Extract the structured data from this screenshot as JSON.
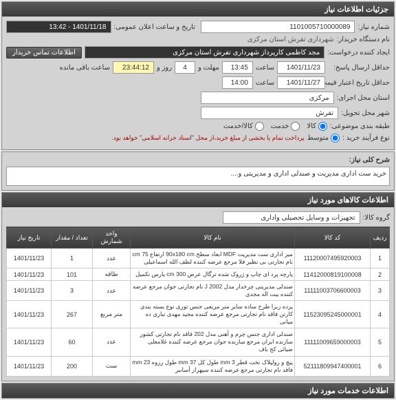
{
  "mainHeader": "جزئیات اطلاعات نیاز",
  "fields": {
    "needNoLabel": "شماره نیاز:",
    "needNo": "1101005710000089",
    "pubDateLabel": "تاریخ و ساعت اعلان عمومی:",
    "pubDate": "1401/11/18 - 13:42",
    "buyerLabel": "نام دستگاه خریدار:",
    "buyer": "شهرداری تفرش استان مرکزی",
    "requesterLabel": "ایجاد کننده درخواست:",
    "requester": "مجد کاظمی کارپرداز شهرداری تفرش استان مرکزی",
    "contactBtn": "اطلاعات تماس خریدار",
    "deadlineLabel": "حداقل ارسال پاسخ:",
    "deadlineTime": "13:45",
    "deadlineDate": "1401/11/23",
    "timeLbl": "ساعت",
    "durLbl1": "مهلت و",
    "durVal": "4",
    "durLbl2": "روز و",
    "remainTime": "23:44:12",
    "remainLbl": "ساعت باقی مانده",
    "validLabel": "حداقل تاریخ اعتبار قیمت تا تاریخ:",
    "validTime": "14:00",
    "validDate": "1401/11/27",
    "execProvLabel": "استان محل اجرای:",
    "execProv": "مرکزی",
    "deliverCityLabel": "شهر محل تحویل:",
    "deliverCity": "تفرش",
    "topicLabel": "طبقه بندی موضوعی:",
    "topicGoods": "کالا",
    "topicService": "خدمت",
    "topicBoth": "کالا/خدمت",
    "procLabel": "نوع فرآیند خرید :",
    "procMid": "متوسط",
    "procNote": "پرداخت تمام یا بخشی از مبلغ خرید،از محل \"اسناد خزانه اسلامی\" خواهد بود."
  },
  "descLabel": "شرح کلی نیاز:",
  "desc": "خرید ست اداری مدیریت و صندلی اداری و مدیریتی و....",
  "itemsHeader": "اطلاعات کالاهای مورد نیاز",
  "groupLabel": "گروه کالا:",
  "group": "تجهیزات و وسایل تحصیلی واداری",
  "cols": {
    "row": "ردیف",
    "code": "کد کالا",
    "name": "نام کالا",
    "unit": "واحد شمارش",
    "qty": "تعداد / مقدار",
    "date": "تاریخ نیاز"
  },
  "rows": [
    {
      "n": "1",
      "code": "11120007495920003",
      "name": "میز اداری ست مدیریت MDF ابعاد سطح 90x180 cm ارتفاع 75 cm نام تجارتی بی نظیر فلا مرجع عرضه کننده لطف الله اسماعیلی",
      "unit": "عدد",
      "qty": "1",
      "date": "1401/11/23"
    },
    {
      "n": "2",
      "code": "11412000819100008",
      "name": "پارچه پرد ای چاپ و ژروک شده ترگال عرض 300 cm پارس تکمیل",
      "unit": "طاقه",
      "qty": "101",
      "date": "1401/11/23"
    },
    {
      "n": "3",
      "code": "11111003706600003",
      "name": "صندلی مدیریتی چرخدار مدل 2002 J نام تجارتی جوان مرجع عرضه کننده بیت اله مجدی",
      "unit": "عدد",
      "qty": "3",
      "date": "1401/11/23"
    },
    {
      "n": "4",
      "code": "11523095245000001",
      "name": "پرده زبرا طرح ساده سایز متر مربعی جنس توری نوع بسته بندی کارتن فاقد نام تجارتی مرجع عرضه کننده مجید مهدی تباری ده میانی",
      "unit": "متر مربع",
      "qty": "267",
      "date": "1401/11/23"
    },
    {
      "n": "5",
      "code": "11111009659000003",
      "name": "صندلی اداری جنس چرم و آهنی مدل 202 فاقد نام تجارتی کشور سازنده ایران مرجع سازنده جوان مرجع عرضه کننده غلامعلی ضیائی کج باف",
      "unit": "عدد",
      "qty": "60",
      "date": "1401/11/23"
    },
    {
      "n": "6",
      "code": "52111809947400001",
      "name": "پیچ و رولپلاک تخت قطر 3 mm طول کل 37 mm طول رزوه 23 mm فاقد نام تجارتی مرجع عرضه کننده سپهراز آسانبر",
      "unit": "ست",
      "qty": "200",
      "date": "1401/11/23"
    }
  ],
  "servicesHeader": "اطلاعات خدمات مورد نیاز"
}
